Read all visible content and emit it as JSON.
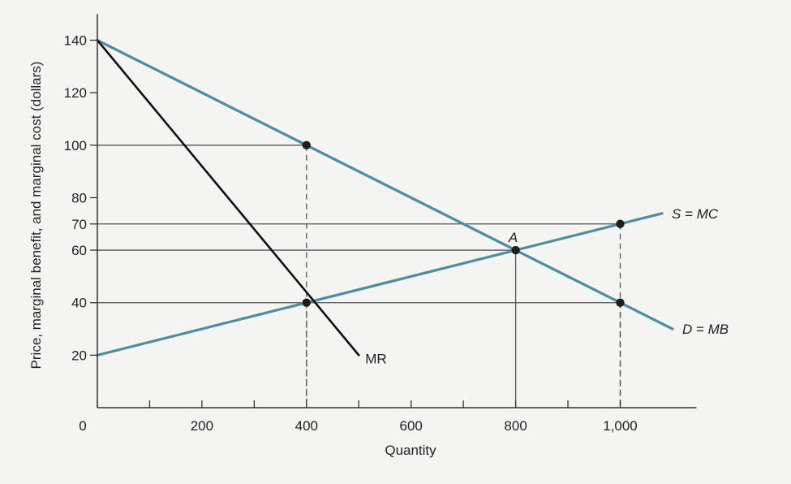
{
  "chart_data": {
    "type": "line",
    "xlabel": "Quantity",
    "ylabel": "Price, marginal benefit, and marginal cost (dollars)",
    "xlim": [
      0,
      1200
    ],
    "ylim": [
      0,
      150
    ],
    "x_ticks": [
      0,
      100,
      200,
      300,
      400,
      500,
      600,
      700,
      800,
      900,
      1000
    ],
    "x_tick_labels": [
      {
        "value": 0,
        "label": "0"
      },
      {
        "value": 200,
        "label": "200"
      },
      {
        "value": 400,
        "label": "400"
      },
      {
        "value": 600,
        "label": "600"
      },
      {
        "value": 800,
        "label": "800"
      },
      {
        "value": 1000,
        "label": "1,000"
      }
    ],
    "y_tick_labels": [
      {
        "value": 20,
        "label": "20"
      },
      {
        "value": 40,
        "label": "40"
      },
      {
        "value": 60,
        "label": "60"
      },
      {
        "value": 70,
        "label": "70"
      },
      {
        "value": 80,
        "label": "80"
      },
      {
        "value": 100,
        "label": "100"
      },
      {
        "value": 120,
        "label": "120"
      },
      {
        "value": 140,
        "label": "140"
      }
    ],
    "series": [
      {
        "name": "D = MB",
        "label_main": "D",
        "label_rest": " = ",
        "label_end": "MB",
        "color": "#4d8da0",
        "points": [
          [
            0,
            140
          ],
          [
            1100,
            30
          ]
        ]
      },
      {
        "name": "S = MC",
        "label_main": "S",
        "label_rest": " = ",
        "label_end": "MC",
        "color": "#4d8da0",
        "points": [
          [
            0,
            20
          ],
          [
            1080,
            74
          ]
        ]
      },
      {
        "name": "MR",
        "color": "#111111",
        "points": [
          [
            0,
            140
          ],
          [
            500,
            20
          ]
        ]
      }
    ],
    "reference_lines": [
      {
        "x": 400,
        "y": 100,
        "style": "dashed-vertical"
      },
      {
        "x": 400,
        "y": 40,
        "style": "dashed-vertical"
      },
      {
        "x": 800,
        "y": 60,
        "style": "solid-vertical"
      },
      {
        "x": 1000,
        "y": 70,
        "style": "dashed-vertical"
      },
      {
        "x": 1000,
        "y": 40,
        "style": "dashed-vertical"
      }
    ],
    "horizontal_guides": [
      {
        "y": 100,
        "x_end": 400
      },
      {
        "y": 70,
        "x_end": 1000
      },
      {
        "y": 60,
        "x_end": 800
      },
      {
        "y": 40,
        "x_end": 1000
      }
    ],
    "points": [
      {
        "x": 400,
        "y": 100
      },
      {
        "x": 400,
        "y": 40
      },
      {
        "x": 800,
        "y": 60
      },
      {
        "x": 1000,
        "y": 70
      },
      {
        "x": 1000,
        "y": 40
      }
    ],
    "annotations": [
      {
        "text": "A",
        "x": 800,
        "y": 60
      }
    ],
    "colors": {
      "supply_demand": "#4d8da0",
      "marginal_revenue": "#111111",
      "axis": "#333333",
      "guides": "#555555",
      "background": "#f4f4f3"
    }
  }
}
